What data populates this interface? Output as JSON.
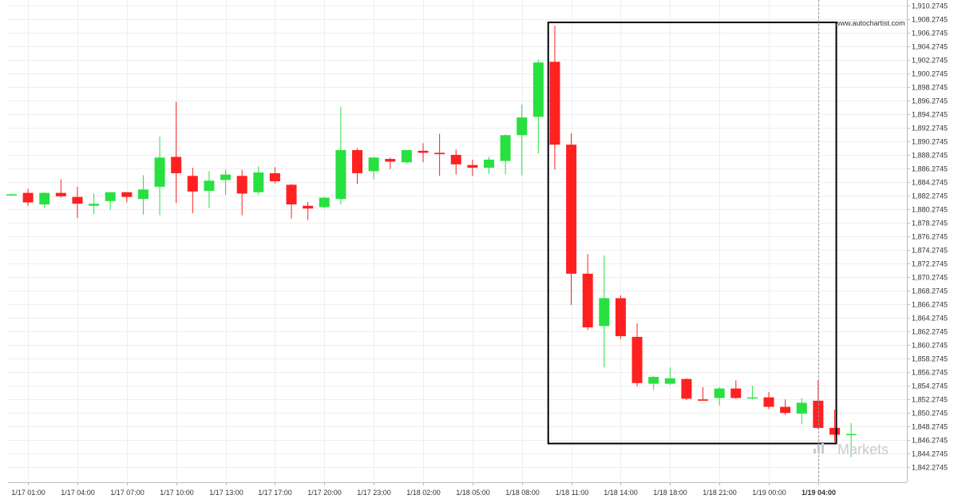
{
  "watermark": "www.autochartist.com",
  "brand": {
    "name": "Markets"
  },
  "colors": {
    "bull": "#28e040",
    "bear": "#ff2020",
    "grid": "#eeeeee",
    "frame": "#000000",
    "text": "#333333",
    "marker": "#999999",
    "brand": "#c7ccd1"
  },
  "chart_data": {
    "type": "candlestick",
    "title": "",
    "xlabel": "",
    "ylabel": "",
    "ylim": [
      1841.2745,
      1910.2745
    ],
    "grid": true,
    "y_axis_position": "right",
    "y_ticks": [
      1910.2745,
      1908.2745,
      1906.2745,
      1904.2745,
      1902.2745,
      1900.2745,
      1898.2745,
      1896.2745,
      1894.2745,
      1892.2745,
      1890.2745,
      1888.2745,
      1886.2745,
      1884.2745,
      1882.2745,
      1880.2745,
      1878.2745,
      1876.2745,
      1874.2745,
      1872.2745,
      1870.2745,
      1868.2745,
      1866.2745,
      1864.2745,
      1862.2745,
      1860.2745,
      1858.2745,
      1856.2745,
      1854.2745,
      1852.2745,
      1850.2745,
      1848.2745,
      1846.2745,
      1844.2745,
      1842.2745
    ],
    "y_tick_labels": [
      "1,910.2745",
      "1,908.2745",
      "1,906.2745",
      "1,904.2745",
      "1,902.2745",
      "1,900.2745",
      "1,898.2745",
      "1,896.2745",
      "1,894.2745",
      "1,892.2745",
      "1,890.2745",
      "1,888.2745",
      "1,886.2745",
      "1,884.2745",
      "1,882.2745",
      "1,880.2745",
      "1,878.2745",
      "1,876.2745",
      "1,874.2745",
      "1,872.2745",
      "1,870.2745",
      "1,868.2745",
      "1,866.2745",
      "1,864.2745",
      "1,862.2745",
      "1,860.2745",
      "1,858.2745",
      "1,856.2745",
      "1,854.2745",
      "1,852.2745",
      "1,850.2745",
      "1,848.2745",
      "1,846.2745",
      "1,844.2745",
      "1,842.2745"
    ],
    "x_ticks": [
      {
        "index": 1,
        "label": "1/17 01:00",
        "bold": false
      },
      {
        "index": 4,
        "label": "1/17 04:00",
        "bold": false
      },
      {
        "index": 7,
        "label": "1/17 07:00",
        "bold": false
      },
      {
        "index": 10,
        "label": "1/17 10:00",
        "bold": false
      },
      {
        "index": 13,
        "label": "1/17 13:00",
        "bold": false
      },
      {
        "index": 16,
        "label": "1/17 17:00",
        "bold": false
      },
      {
        "index": 19,
        "label": "1/17 20:00",
        "bold": false
      },
      {
        "index": 22,
        "label": "1/17 23:00",
        "bold": false
      },
      {
        "index": 25,
        "label": "1/18 02:00",
        "bold": false
      },
      {
        "index": 28,
        "label": "1/18 05:00",
        "bold": false
      },
      {
        "index": 31,
        "label": "1/18 08:00",
        "bold": false
      },
      {
        "index": 34,
        "label": "1/18 11:00",
        "bold": false
      },
      {
        "index": 37,
        "label": "1/18 14:00",
        "bold": false
      },
      {
        "index": 40,
        "label": "1/18 18:00",
        "bold": false
      },
      {
        "index": 43,
        "label": "1/18 21:00",
        "bold": false
      },
      {
        "index": 46,
        "label": "1/19 00:00",
        "bold": false
      },
      {
        "index": 49,
        "label": "1/19 04:00",
        "bold": true
      }
    ],
    "candles": [
      {
        "o": 1882.5,
        "h": 1882.6,
        "l": 1882.4,
        "c": 1882.5
      },
      {
        "o": 1882.7,
        "h": 1883.3,
        "l": 1880.8,
        "c": 1881.3
      },
      {
        "o": 1881.0,
        "h": 1882.8,
        "l": 1880.5,
        "c": 1882.7
      },
      {
        "o": 1882.7,
        "h": 1884.7,
        "l": 1882.0,
        "c": 1882.2
      },
      {
        "o": 1882.1,
        "h": 1883.6,
        "l": 1879.0,
        "c": 1881.1
      },
      {
        "o": 1880.8,
        "h": 1882.6,
        "l": 1879.6,
        "c": 1881.1
      },
      {
        "o": 1881.5,
        "h": 1882.8,
        "l": 1880.2,
        "c": 1882.8
      },
      {
        "o": 1882.8,
        "h": 1882.8,
        "l": 1881.3,
        "c": 1882.1
      },
      {
        "o": 1881.8,
        "h": 1885.3,
        "l": 1879.5,
        "c": 1883.2
      },
      {
        "o": 1883.6,
        "h": 1891.0,
        "l": 1879.4,
        "c": 1887.9
      },
      {
        "o": 1888.0,
        "h": 1896.1,
        "l": 1881.2,
        "c": 1885.6
      },
      {
        "o": 1885.2,
        "h": 1886.4,
        "l": 1879.7,
        "c": 1882.9
      },
      {
        "o": 1883.0,
        "h": 1885.9,
        "l": 1880.5,
        "c": 1884.5
      },
      {
        "o": 1884.6,
        "h": 1886.1,
        "l": 1882.4,
        "c": 1885.4
      },
      {
        "o": 1885.2,
        "h": 1886.1,
        "l": 1879.4,
        "c": 1882.6
      },
      {
        "o": 1882.8,
        "h": 1886.6,
        "l": 1882.4,
        "c": 1885.7
      },
      {
        "o": 1885.6,
        "h": 1886.5,
        "l": 1884.1,
        "c": 1884.4
      },
      {
        "o": 1883.9,
        "h": 1884.0,
        "l": 1878.9,
        "c": 1881.0
      },
      {
        "o": 1880.8,
        "h": 1881.4,
        "l": 1878.7,
        "c": 1880.4
      },
      {
        "o": 1880.6,
        "h": 1882.1,
        "l": 1880.4,
        "c": 1882.0
      },
      {
        "o": 1881.8,
        "h": 1895.4,
        "l": 1881.0,
        "c": 1889.0
      },
      {
        "o": 1889.0,
        "h": 1889.3,
        "l": 1884.0,
        "c": 1885.6
      },
      {
        "o": 1885.9,
        "h": 1888.0,
        "l": 1884.7,
        "c": 1887.9
      },
      {
        "o": 1887.7,
        "h": 1887.9,
        "l": 1886.2,
        "c": 1887.3
      },
      {
        "o": 1887.2,
        "h": 1889.0,
        "l": 1887.0,
        "c": 1889.0
      },
      {
        "o": 1888.9,
        "h": 1890.0,
        "l": 1887.2,
        "c": 1888.6
      },
      {
        "o": 1888.6,
        "h": 1891.4,
        "l": 1885.2,
        "c": 1888.4
      },
      {
        "o": 1888.3,
        "h": 1889.1,
        "l": 1885.4,
        "c": 1886.9
      },
      {
        "o": 1886.8,
        "h": 1887.6,
        "l": 1885.2,
        "c": 1886.4
      },
      {
        "o": 1886.4,
        "h": 1888.0,
        "l": 1885.5,
        "c": 1887.6
      },
      {
        "o": 1887.4,
        "h": 1891.3,
        "l": 1885.4,
        "c": 1891.2
      },
      {
        "o": 1891.2,
        "h": 1895.7,
        "l": 1885.3,
        "c": 1893.8
      },
      {
        "o": 1893.9,
        "h": 1902.3,
        "l": 1888.5,
        "c": 1901.9
      },
      {
        "o": 1902.0,
        "h": 1907.3,
        "l": 1886.1,
        "c": 1889.8
      },
      {
        "o": 1889.8,
        "h": 1891.5,
        "l": 1866.2,
        "c": 1870.8
      },
      {
        "o": 1870.8,
        "h": 1873.7,
        "l": 1862.5,
        "c": 1862.9
      },
      {
        "o": 1863.1,
        "h": 1873.5,
        "l": 1857.0,
        "c": 1867.2
      },
      {
        "o": 1867.2,
        "h": 1867.6,
        "l": 1861.2,
        "c": 1861.6
      },
      {
        "o": 1861.5,
        "h": 1863.5,
        "l": 1854.2,
        "c": 1854.7
      },
      {
        "o": 1854.6,
        "h": 1855.8,
        "l": 1853.7,
        "c": 1855.6
      },
      {
        "o": 1854.6,
        "h": 1857.0,
        "l": 1854.4,
        "c": 1855.4
      },
      {
        "o": 1855.3,
        "h": 1855.4,
        "l": 1852.2,
        "c": 1852.4
      },
      {
        "o": 1852.3,
        "h": 1854.1,
        "l": 1852.1,
        "c": 1852.1
      },
      {
        "o": 1852.5,
        "h": 1854.1,
        "l": 1851.4,
        "c": 1853.9
      },
      {
        "o": 1853.9,
        "h": 1855.1,
        "l": 1852.4,
        "c": 1852.5
      },
      {
        "o": 1852.5,
        "h": 1854.3,
        "l": 1852.3,
        "c": 1852.6
      },
      {
        "o": 1852.6,
        "h": 1853.4,
        "l": 1850.9,
        "c": 1851.2
      },
      {
        "o": 1851.2,
        "h": 1852.3,
        "l": 1850.0,
        "c": 1850.3
      },
      {
        "o": 1850.2,
        "h": 1852.5,
        "l": 1848.7,
        "c": 1851.8
      },
      {
        "o": 1852.1,
        "h": 1855.1,
        "l": 1847.9,
        "c": 1848.1
      },
      {
        "o": 1848.1,
        "h": 1850.8,
        "l": 1846.0,
        "c": 1847.1
      },
      {
        "o": 1847.2,
        "h": 1848.8,
        "l": 1843.8,
        "c": 1847.2
      }
    ],
    "annotations": [
      {
        "type": "rectangle",
        "x_start_index": 32.6,
        "x_end_index": 50.1,
        "y_top": 1907.8,
        "y_bottom": 1845.8
      },
      {
        "type": "vline",
        "x_index": 49.0,
        "style": "dashed"
      }
    ]
  }
}
